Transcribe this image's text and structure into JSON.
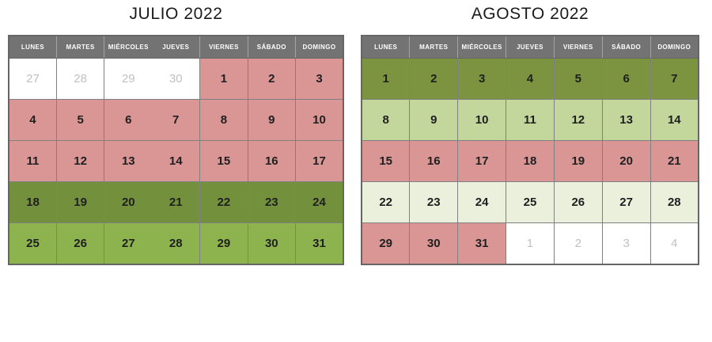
{
  "colors": {
    "header_bg": "#737373",
    "header_text": "#ffffff",
    "grid_border": "#808080",
    "outer_border": "#666666",
    "header_divider": "#a3a3a3",
    "title_text": "#1a1a1a",
    "day_text": "#1f1f1f",
    "other_month_text": "#c0c0c0",
    "pink": "#D99694",
    "dark_green_july": "#73903C",
    "dark_green_august": "#7C9440",
    "medium_green": "#8DB34E",
    "light_green": "#C3D69B",
    "pale_green": "#EAF0DC",
    "white_cell": "#FFFFFF"
  },
  "calendars": [
    {
      "id": "july",
      "title": "JULIO 2022",
      "day_headers": [
        "LUNES",
        "MARTES",
        "MIÉRCOLES",
        "JUEVES",
        "VIERNES",
        "SÁBADO",
        "DOMINGO"
      ],
      "merged_wed_thu_border": true,
      "weeks": [
        [
          {
            "d": "27",
            "c": "white_cell",
            "other": true
          },
          {
            "d": "28",
            "c": "white_cell",
            "other": true
          },
          {
            "d": "29",
            "c": "white_cell",
            "other": true
          },
          {
            "d": "30",
            "c": "white_cell",
            "other": true
          },
          {
            "d": "1",
            "c": "pink"
          },
          {
            "d": "2",
            "c": "pink"
          },
          {
            "d": "3",
            "c": "pink"
          }
        ],
        [
          {
            "d": "4",
            "c": "pink"
          },
          {
            "d": "5",
            "c": "pink"
          },
          {
            "d": "6",
            "c": "pink"
          },
          {
            "d": "7",
            "c": "pink"
          },
          {
            "d": "8",
            "c": "pink"
          },
          {
            "d": "9",
            "c": "pink"
          },
          {
            "d": "10",
            "c": "pink"
          }
        ],
        [
          {
            "d": "11",
            "c": "pink"
          },
          {
            "d": "12",
            "c": "pink"
          },
          {
            "d": "13",
            "c": "pink"
          },
          {
            "d": "14",
            "c": "pink"
          },
          {
            "d": "15",
            "c": "pink"
          },
          {
            "d": "16",
            "c": "pink"
          },
          {
            "d": "17",
            "c": "pink"
          }
        ],
        [
          {
            "d": "18",
            "c": "dark_green_july"
          },
          {
            "d": "19",
            "c": "dark_green_july"
          },
          {
            "d": "20",
            "c": "dark_green_july"
          },
          {
            "d": "21",
            "c": "dark_green_july"
          },
          {
            "d": "22",
            "c": "dark_green_july"
          },
          {
            "d": "23",
            "c": "dark_green_july"
          },
          {
            "d": "24",
            "c": "dark_green_july"
          }
        ],
        [
          {
            "d": "25",
            "c": "medium_green"
          },
          {
            "d": "26",
            "c": "medium_green"
          },
          {
            "d": "27",
            "c": "medium_green"
          },
          {
            "d": "28",
            "c": "medium_green"
          },
          {
            "d": "29",
            "c": "medium_green"
          },
          {
            "d": "30",
            "c": "medium_green"
          },
          {
            "d": "31",
            "c": "medium_green"
          }
        ]
      ]
    },
    {
      "id": "august",
      "title": "AGOSTO 2022",
      "day_headers": [
        "LUNES",
        "MARTES",
        "MIÉRCOLES",
        "JUEVES",
        "VIERNES",
        "SÁBADO",
        "DOMINGO"
      ],
      "merged_wed_thu_border": false,
      "weeks": [
        [
          {
            "d": "1",
            "c": "dark_green_august"
          },
          {
            "d": "2",
            "c": "dark_green_august"
          },
          {
            "d": "3",
            "c": "dark_green_august"
          },
          {
            "d": "4",
            "c": "dark_green_august"
          },
          {
            "d": "5",
            "c": "dark_green_august"
          },
          {
            "d": "6",
            "c": "dark_green_august"
          },
          {
            "d": "7",
            "c": "dark_green_august"
          }
        ],
        [
          {
            "d": "8",
            "c": "light_green"
          },
          {
            "d": "9",
            "c": "light_green"
          },
          {
            "d": "10",
            "c": "light_green"
          },
          {
            "d": "11",
            "c": "light_green"
          },
          {
            "d": "12",
            "c": "light_green"
          },
          {
            "d": "13",
            "c": "light_green"
          },
          {
            "d": "14",
            "c": "light_green"
          }
        ],
        [
          {
            "d": "15",
            "c": "pink"
          },
          {
            "d": "16",
            "c": "pink"
          },
          {
            "d": "17",
            "c": "pink"
          },
          {
            "d": "18",
            "c": "pink"
          },
          {
            "d": "19",
            "c": "pink"
          },
          {
            "d": "20",
            "c": "pink"
          },
          {
            "d": "21",
            "c": "pink"
          }
        ],
        [
          {
            "d": "22",
            "c": "pale_green"
          },
          {
            "d": "23",
            "c": "pale_green"
          },
          {
            "d": "24",
            "c": "pale_green"
          },
          {
            "d": "25",
            "c": "pale_green"
          },
          {
            "d": "26",
            "c": "pale_green"
          },
          {
            "d": "27",
            "c": "pale_green"
          },
          {
            "d": "28",
            "c": "pale_green"
          }
        ],
        [
          {
            "d": "29",
            "c": "pink"
          },
          {
            "d": "30",
            "c": "pink"
          },
          {
            "d": "31",
            "c": "pink"
          },
          {
            "d": "1",
            "c": "white_cell",
            "other": true
          },
          {
            "d": "2",
            "c": "white_cell",
            "other": true
          },
          {
            "d": "3",
            "c": "white_cell",
            "other": true
          },
          {
            "d": "4",
            "c": "white_cell",
            "other": true
          }
        ]
      ]
    }
  ]
}
